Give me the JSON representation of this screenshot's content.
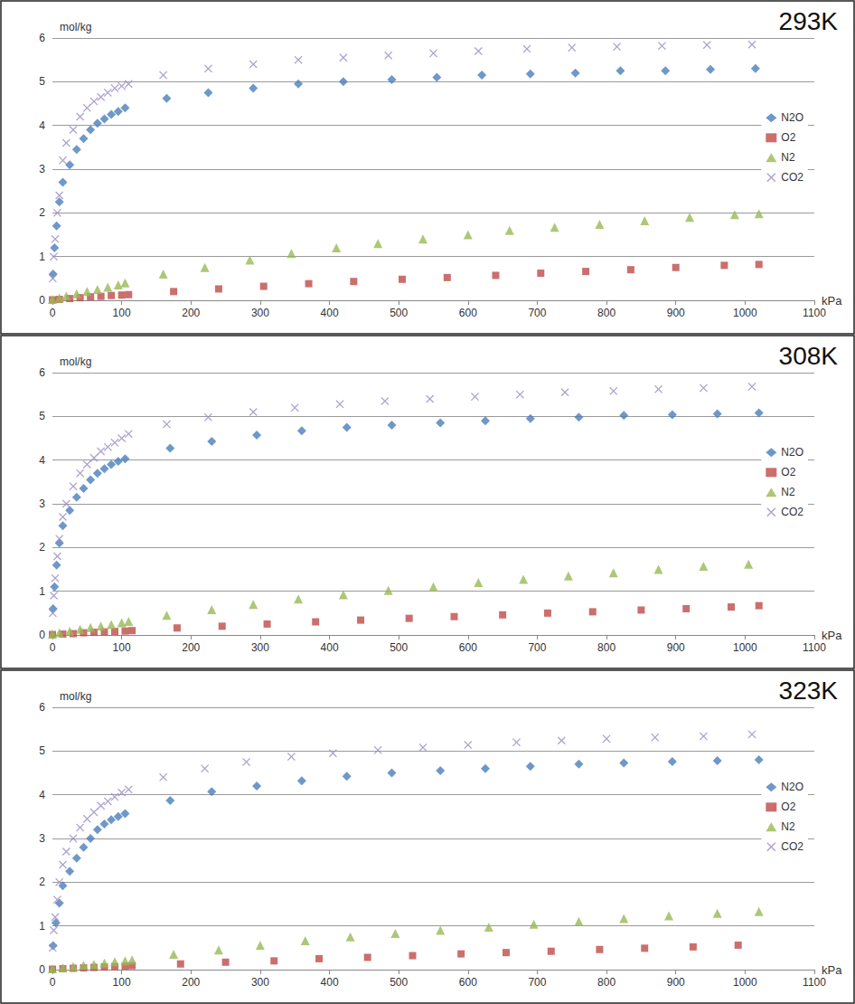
{
  "chart_data": [
    {
      "type": "scatter",
      "title": "293K",
      "x_label": "kPa",
      "y_label": "mol/kg",
      "xlim": [
        0,
        1100
      ],
      "xticks": [
        0,
        100,
        200,
        300,
        400,
        500,
        600,
        700,
        800,
        900,
        1000,
        1100
      ],
      "ylim": [
        0,
        6
      ],
      "yticks": [
        0,
        1,
        2,
        3,
        4,
        5,
        6
      ],
      "grid": true,
      "legend": "right",
      "series": [
        {
          "name": "N2O",
          "color": "#4a7ebb",
          "marker": "diamond",
          "x": [
            1,
            3,
            6,
            10,
            15,
            25,
            35,
            45,
            55,
            65,
            75,
            85,
            95,
            105,
            165,
            225,
            290,
            355,
            420,
            490,
            555,
            620,
            690,
            755,
            820,
            885,
            950,
            1015
          ],
          "values": [
            0.6,
            1.2,
            1.7,
            2.25,
            2.7,
            3.1,
            3.45,
            3.7,
            3.9,
            4.05,
            4.15,
            4.25,
            4.32,
            4.4,
            4.62,
            4.75,
            4.85,
            4.95,
            5.0,
            5.05,
            5.1,
            5.15,
            5.18,
            5.2,
            5.25,
            5.25,
            5.28,
            5.3
          ]
        },
        {
          "name": "O2",
          "color": "#be4b48",
          "marker": "square",
          "x": [
            0,
            10,
            25,
            40,
            55,
            70,
            85,
            100,
            110,
            175,
            240,
            305,
            370,
            435,
            505,
            570,
            640,
            705,
            770,
            835,
            900,
            970,
            1020
          ],
          "values": [
            0.01,
            0.02,
            0.04,
            0.06,
            0.08,
            0.09,
            0.11,
            0.12,
            0.13,
            0.2,
            0.26,
            0.32,
            0.38,
            0.43,
            0.48,
            0.52,
            0.57,
            0.62,
            0.66,
            0.7,
            0.75,
            0.8,
            0.82
          ]
        },
        {
          "name": "N2",
          "color": "#98b954",
          "marker": "triangle",
          "x": [
            0,
            10,
            20,
            35,
            50,
            65,
            80,
            95,
            105,
            160,
            220,
            285,
            345,
            410,
            470,
            535,
            600,
            660,
            725,
            790,
            855,
            920,
            985,
            1020
          ],
          "values": [
            0.02,
            0.05,
            0.1,
            0.15,
            0.2,
            0.25,
            0.3,
            0.35,
            0.4,
            0.6,
            0.75,
            0.92,
            1.07,
            1.2,
            1.3,
            1.4,
            1.5,
            1.6,
            1.67,
            1.74,
            1.82,
            1.9,
            1.96,
            1.98
          ]
        },
        {
          "name": "CO2",
          "color": "#9a8bc4",
          "marker": "x",
          "x": [
            0.5,
            2,
            4,
            7,
            10,
            15,
            20,
            30,
            40,
            50,
            60,
            70,
            80,
            90,
            100,
            110,
            160,
            225,
            290,
            355,
            420,
            485,
            550,
            615,
            685,
            750,
            815,
            880,
            945,
            1010
          ],
          "values": [
            0.5,
            1.0,
            1.4,
            2.0,
            2.4,
            3.2,
            3.6,
            3.9,
            4.2,
            4.4,
            4.55,
            4.65,
            4.75,
            4.85,
            4.9,
            4.95,
            5.15,
            5.3,
            5.4,
            5.5,
            5.55,
            5.6,
            5.65,
            5.7,
            5.75,
            5.78,
            5.8,
            5.82,
            5.84,
            5.85
          ]
        }
      ]
    },
    {
      "type": "scatter",
      "title": "308K",
      "x_label": "kPa",
      "y_label": "mol/kg",
      "xlim": [
        0,
        1100
      ],
      "xticks": [
        0,
        100,
        200,
        300,
        400,
        500,
        600,
        700,
        800,
        900,
        1000,
        1100
      ],
      "ylim": [
        0,
        6
      ],
      "yticks": [
        0,
        1,
        2,
        3,
        4,
        5,
        6
      ],
      "grid": true,
      "legend": "right",
      "series": [
        {
          "name": "N2O",
          "color": "#4a7ebb",
          "marker": "diamond",
          "x": [
            1,
            3,
            6,
            10,
            15,
            25,
            35,
            45,
            55,
            65,
            75,
            85,
            95,
            105,
            170,
            230,
            295,
            360,
            425,
            490,
            560,
            625,
            690,
            760,
            825,
            895,
            960,
            1020
          ],
          "values": [
            0.6,
            1.1,
            1.6,
            2.1,
            2.5,
            2.85,
            3.15,
            3.35,
            3.55,
            3.7,
            3.8,
            3.9,
            3.97,
            4.03,
            4.27,
            4.43,
            4.57,
            4.67,
            4.75,
            4.8,
            4.85,
            4.9,
            4.95,
            4.98,
            5.02,
            5.04,
            5.06,
            5.08
          ]
        },
        {
          "name": "O2",
          "color": "#be4b48",
          "marker": "square",
          "x": [
            0,
            15,
            30,
            45,
            60,
            75,
            90,
            105,
            115,
            180,
            245,
            310,
            380,
            445,
            515,
            580,
            650,
            715,
            780,
            850,
            915,
            980,
            1020
          ],
          "values": [
            0.01,
            0.02,
            0.03,
            0.05,
            0.06,
            0.07,
            0.08,
            0.09,
            0.1,
            0.16,
            0.2,
            0.25,
            0.3,
            0.34,
            0.38,
            0.42,
            0.46,
            0.5,
            0.53,
            0.57,
            0.6,
            0.64,
            0.67
          ]
        },
        {
          "name": "N2",
          "color": "#98b954",
          "marker": "triangle",
          "x": [
            0,
            10,
            25,
            40,
            55,
            70,
            85,
            100,
            110,
            165,
            230,
            290,
            355,
            420,
            485,
            550,
            615,
            680,
            745,
            810,
            875,
            940,
            1005
          ],
          "values": [
            0.02,
            0.05,
            0.09,
            0.13,
            0.17,
            0.2,
            0.24,
            0.28,
            0.31,
            0.45,
            0.58,
            0.7,
            0.82,
            0.92,
            1.02,
            1.1,
            1.2,
            1.27,
            1.35,
            1.42,
            1.5,
            1.57,
            1.62
          ]
        },
        {
          "name": "CO2",
          "color": "#9a8bc4",
          "marker": "x",
          "x": [
            0.5,
            2,
            4,
            7,
            10,
            15,
            20,
            30,
            40,
            50,
            60,
            70,
            80,
            90,
            100,
            110,
            165,
            225,
            290,
            350,
            415,
            480,
            545,
            610,
            675,
            740,
            810,
            875,
            940,
            1010
          ],
          "values": [
            0.5,
            0.9,
            1.3,
            1.8,
            2.2,
            2.7,
            3.0,
            3.4,
            3.7,
            3.9,
            4.05,
            4.2,
            4.3,
            4.4,
            4.5,
            4.6,
            4.82,
            4.98,
            5.1,
            5.2,
            5.28,
            5.35,
            5.4,
            5.45,
            5.5,
            5.55,
            5.58,
            5.62,
            5.65,
            5.68
          ]
        }
      ]
    },
    {
      "type": "scatter",
      "title": "323K",
      "x_label": "kPa",
      "y_label": "mol/kg",
      "xlim": [
        0,
        1100
      ],
      "xticks": [
        0,
        100,
        200,
        300,
        400,
        500,
        600,
        700,
        800,
        900,
        1000,
        1100
      ],
      "ylim": [
        0,
        6
      ],
      "yticks": [
        0,
        1,
        2,
        3,
        4,
        5,
        6
      ],
      "grid": true,
      "legend": "right",
      "series": [
        {
          "name": "N2O",
          "color": "#4a7ebb",
          "marker": "diamond",
          "x": [
            1,
            5,
            10,
            15,
            25,
            35,
            45,
            55,
            65,
            75,
            85,
            95,
            105,
            170,
            230,
            295,
            360,
            425,
            490,
            560,
            625,
            690,
            760,
            825,
            895,
            960,
            1020
          ],
          "values": [
            0.55,
            1.07,
            1.52,
            1.92,
            2.25,
            2.55,
            2.8,
            3.0,
            3.2,
            3.33,
            3.43,
            3.5,
            3.57,
            3.87,
            4.07,
            4.2,
            4.32,
            4.42,
            4.5,
            4.55,
            4.6,
            4.65,
            4.7,
            4.73,
            4.76,
            4.78,
            4.8
          ]
        },
        {
          "name": "O2",
          "color": "#be4b48",
          "marker": "square",
          "x": [
            0,
            15,
            30,
            45,
            60,
            75,
            90,
            105,
            115,
            185,
            250,
            320,
            385,
            455,
            520,
            590,
            655,
            720,
            790,
            855,
            925,
            990
          ],
          "values": [
            0.01,
            0.02,
            0.03,
            0.04,
            0.05,
            0.06,
            0.07,
            0.08,
            0.09,
            0.13,
            0.17,
            0.2,
            0.25,
            0.28,
            0.32,
            0.36,
            0.39,
            0.42,
            0.46,
            0.49,
            0.52,
            0.56
          ]
        },
        {
          "name": "N2",
          "color": "#98b954",
          "marker": "triangle",
          "x": [
            0,
            15,
            30,
            45,
            60,
            75,
            90,
            105,
            115,
            175,
            240,
            300,
            365,
            430,
            495,
            560,
            630,
            695,
            760,
            825,
            890,
            960,
            1020
          ],
          "values": [
            0.02,
            0.04,
            0.07,
            0.1,
            0.12,
            0.15,
            0.18,
            0.2,
            0.22,
            0.35,
            0.45,
            0.56,
            0.66,
            0.75,
            0.83,
            0.9,
            0.97,
            1.04,
            1.1,
            1.17,
            1.23,
            1.29,
            1.33
          ]
        },
        {
          "name": "CO2",
          "color": "#9a8bc4",
          "marker": "x",
          "x": [
            0.5,
            2,
            4,
            7,
            10,
            15,
            20,
            30,
            40,
            50,
            60,
            70,
            80,
            90,
            100,
            110,
            160,
            220,
            280,
            345,
            405,
            470,
            535,
            600,
            670,
            735,
            800,
            870,
            940,
            1010
          ],
          "values": [
            0.5,
            0.9,
            1.2,
            1.6,
            2.0,
            2.4,
            2.7,
            3.0,
            3.25,
            3.45,
            3.6,
            3.75,
            3.85,
            3.95,
            4.05,
            4.12,
            4.4,
            4.6,
            4.75,
            4.87,
            4.95,
            5.02,
            5.08,
            5.14,
            5.2,
            5.24,
            5.28,
            5.31,
            5.34,
            5.38
          ]
        }
      ]
    }
  ]
}
